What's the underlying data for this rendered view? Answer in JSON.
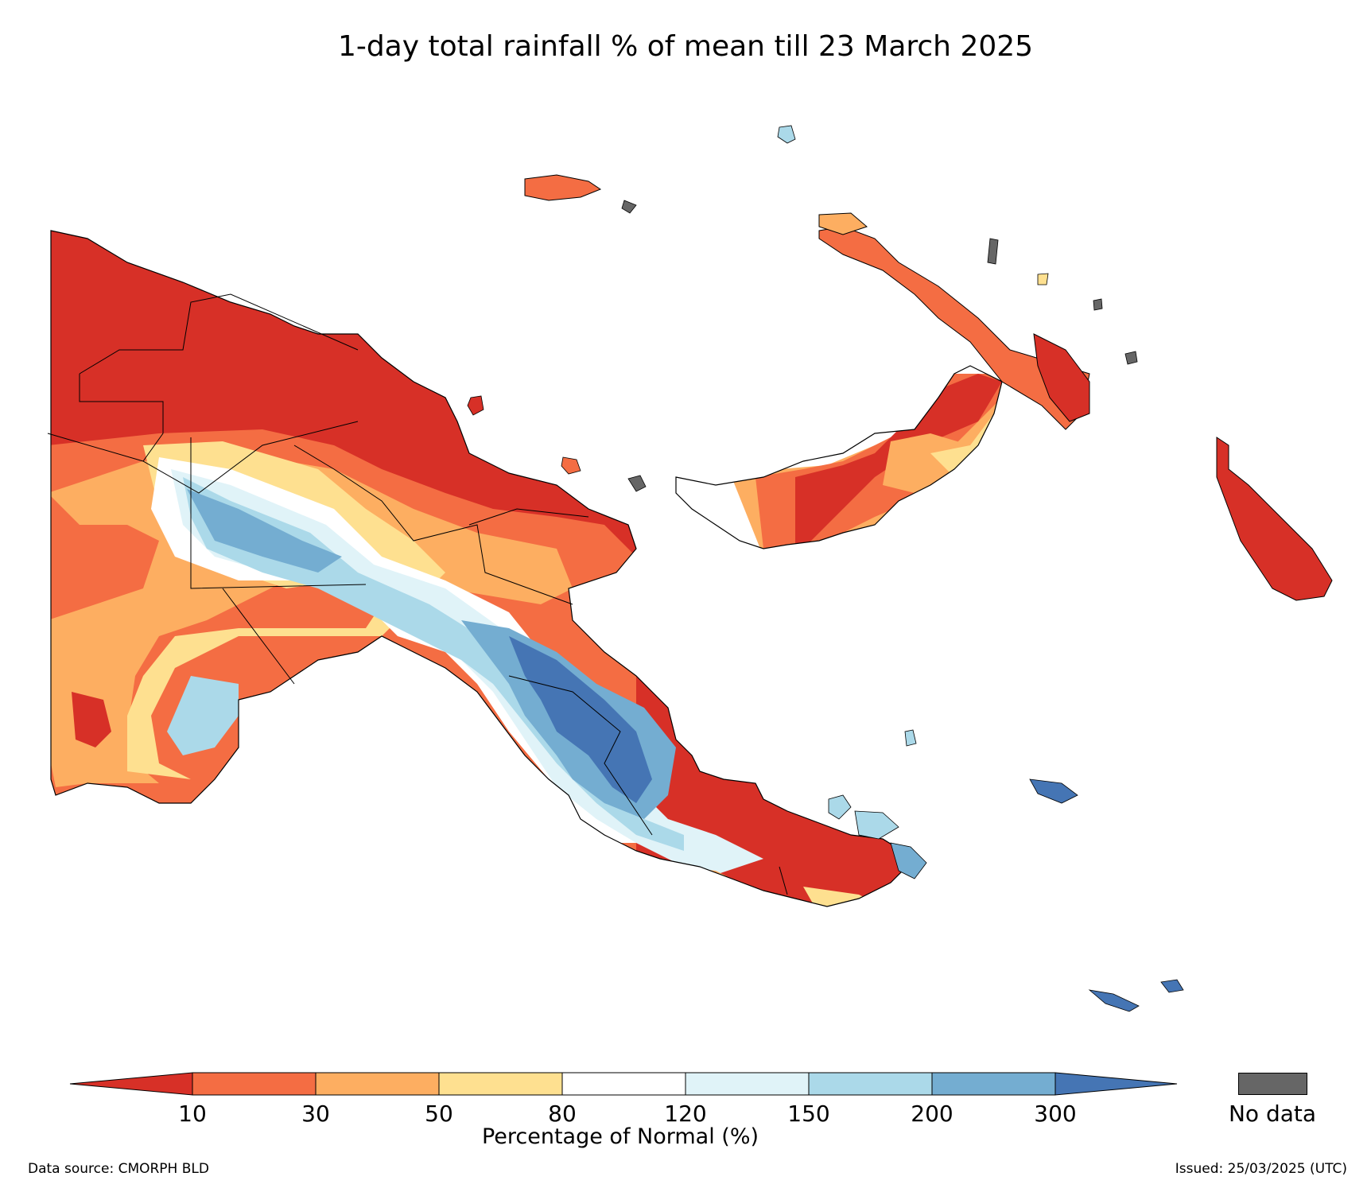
{
  "title": "1-day total rainfall % of mean till 23 March 2025",
  "map_data": {
    "region": "Papua New Guinea",
    "variable": "1-day total rainfall percentage of mean",
    "color_scale": {
      "units": "Percentage of Normal (%)",
      "thresholds": [
        10,
        30,
        50,
        80,
        120,
        150,
        200,
        300
      ],
      "colors": [
        "#d73027",
        "#f46d43",
        "#fdae61",
        "#fee090",
        "#ffffff",
        "#e0f3f8",
        "#abd9e9",
        "#74add1",
        "#4575b4"
      ],
      "extend": "both"
    },
    "no_data_color": "#666666"
  },
  "colorbar": {
    "ticks": [
      "10",
      "30",
      "50",
      "80",
      "120",
      "150",
      "200",
      "300"
    ],
    "label": "Percentage of Normal (%)",
    "no_data_label": "No data"
  },
  "footer": {
    "source": "Data source: CMORPH BLD",
    "issued": "Issued: 25/03/2025 (UTC)"
  }
}
